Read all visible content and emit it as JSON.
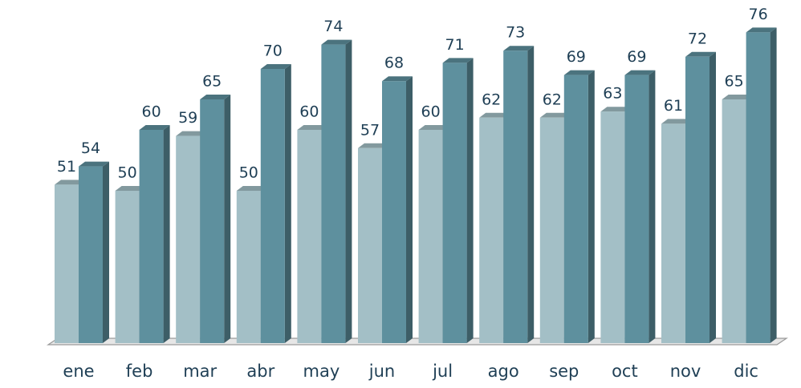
{
  "chart_data": {
    "type": "bar",
    "categories": [
      "ene",
      "feb",
      "mar",
      "abr",
      "may",
      "jun",
      "jul",
      "ago",
      "sep",
      "oct",
      "nov",
      "dic"
    ],
    "series": [
      {
        "color": "#a3bfc6",
        "values": [
          51,
          50,
          59,
          50,
          60,
          57,
          60,
          62,
          62,
          63,
          61,
          65
        ]
      },
      {
        "color": "#5e909e",
        "values": [
          54,
          60,
          65,
          70,
          74,
          68,
          71,
          73,
          69,
          69,
          72,
          76
        ]
      }
    ],
    "ylim": [
      25,
      80
    ]
  }
}
